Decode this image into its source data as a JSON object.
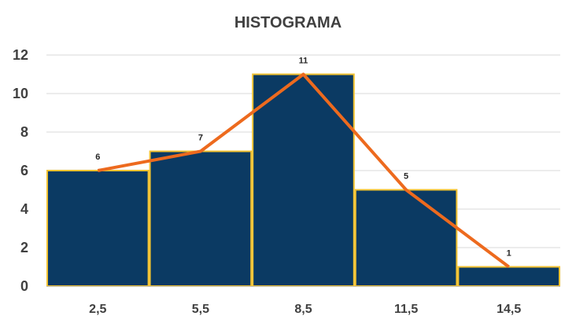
{
  "chart_data": {
    "type": "bar",
    "title": "HISTOGRAMA",
    "categories": [
      "2,5",
      "5,5",
      "8,5",
      "11,5",
      "14,5"
    ],
    "values": [
      6,
      7,
      11,
      5,
      1
    ],
    "data_labels": [
      "6",
      "7",
      "11",
      "5",
      "1"
    ],
    "yticks": [
      "0",
      "2",
      "4",
      "6",
      "8",
      "10",
      "12"
    ],
    "ylim": [
      0,
      12
    ],
    "grid": true,
    "overlay_line": true,
    "colors": {
      "bar_fill": "#0B3A63",
      "bar_border": "#F2C230",
      "line": "#ED6A1E",
      "grid": "#D9D9D9",
      "axis": "#BFBFBF"
    }
  }
}
